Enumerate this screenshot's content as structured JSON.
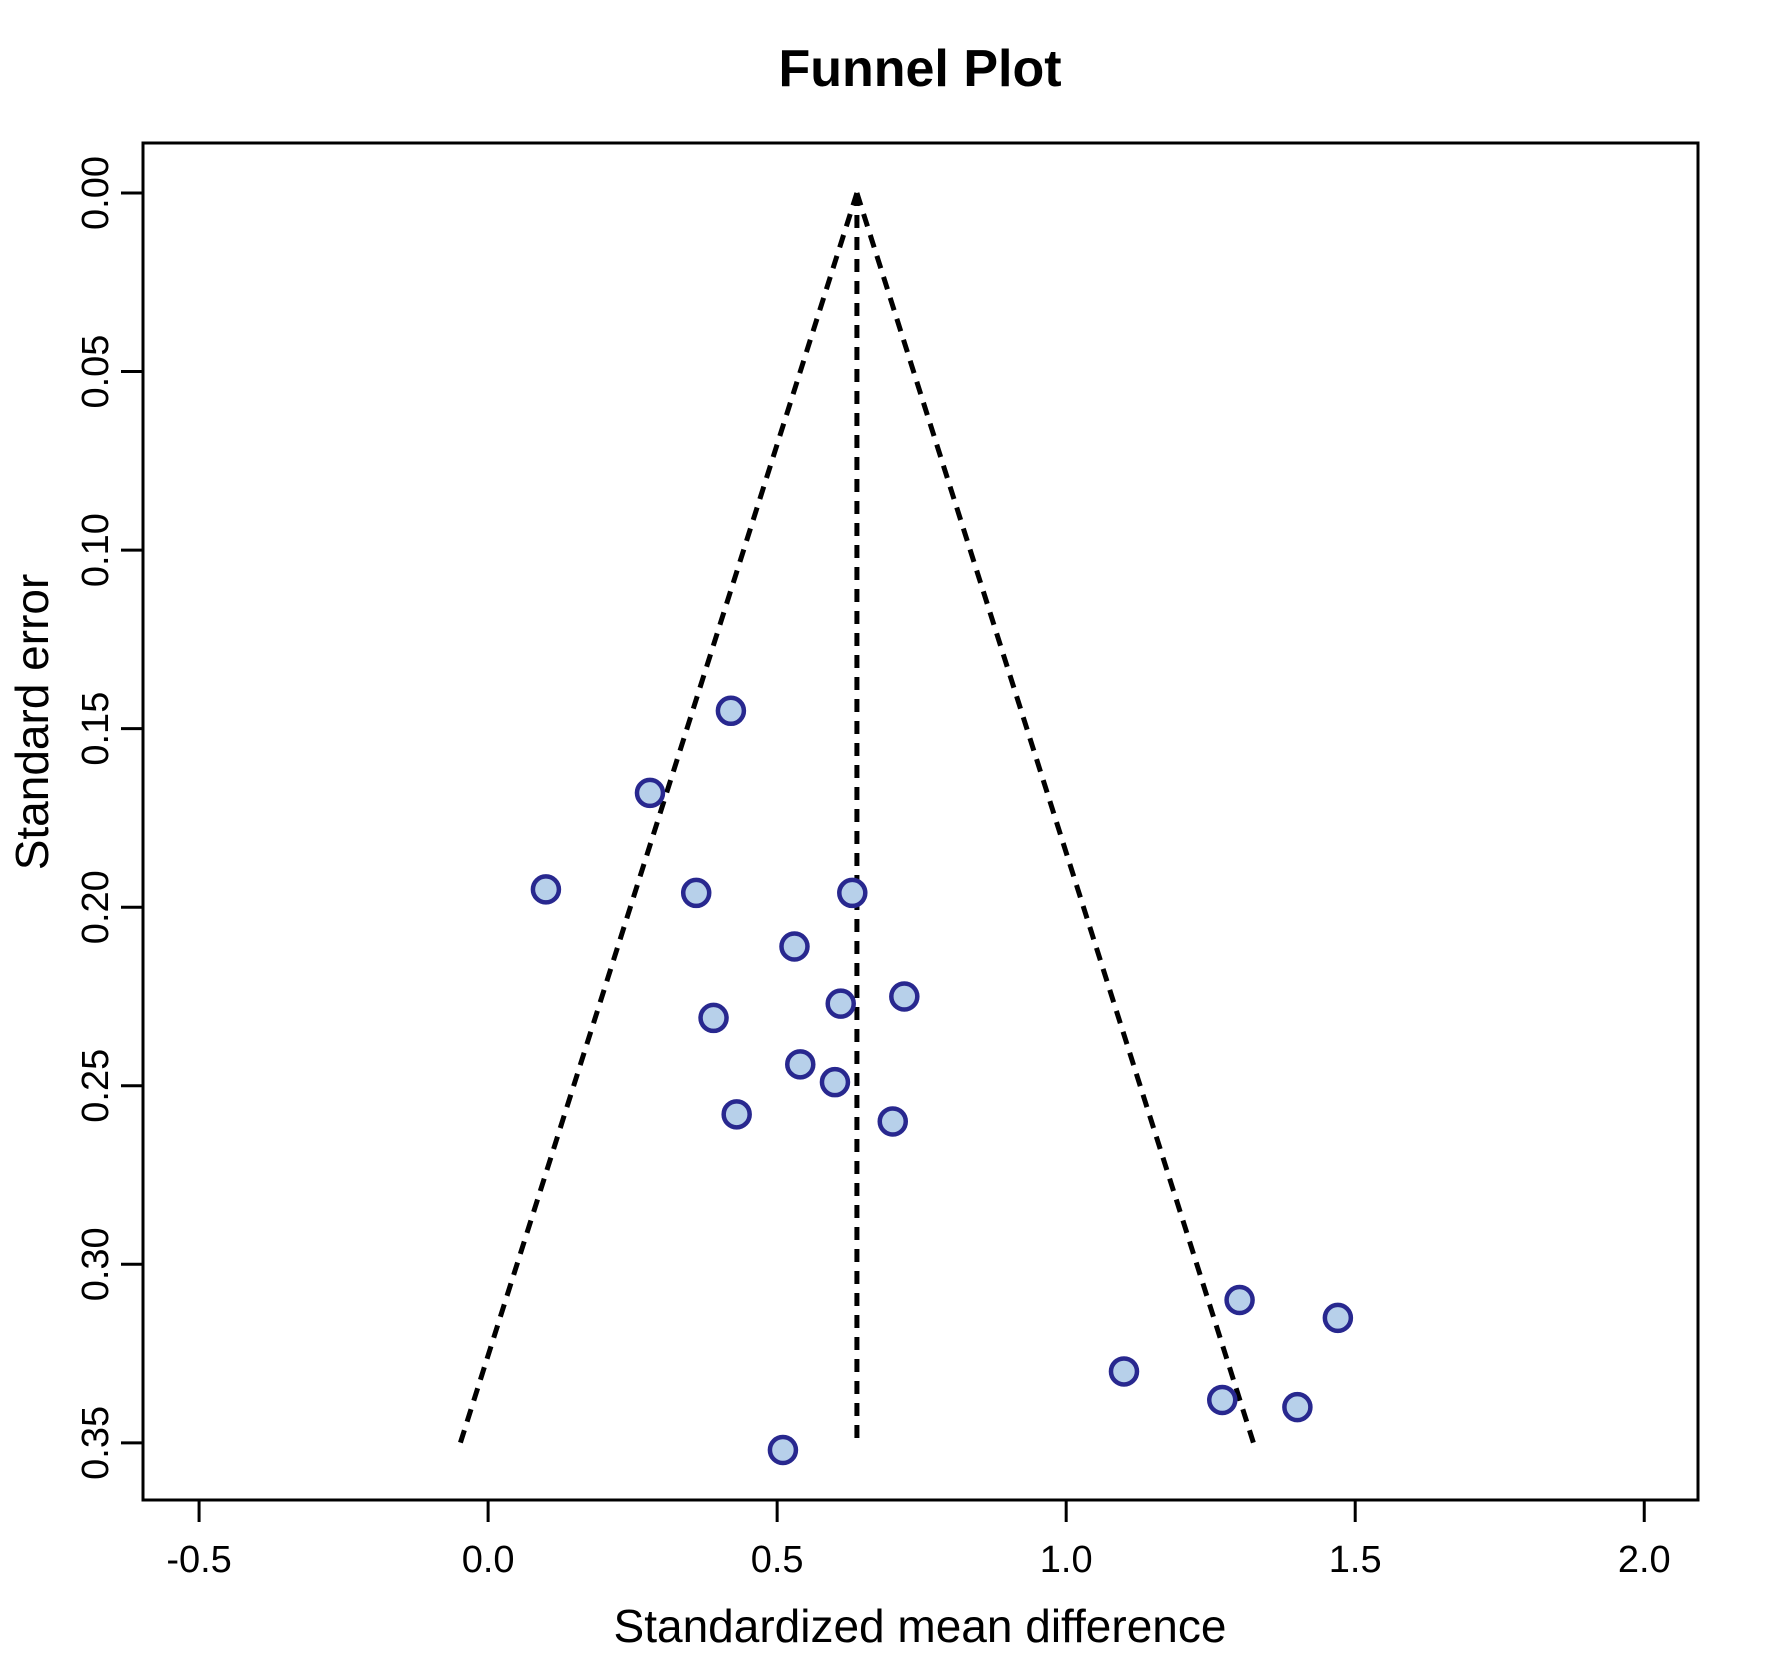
{
  "chart_data": {
    "type": "scatter",
    "title": "Funnel Plot",
    "xlabel": "Standardized mean difference",
    "ylabel": "Standard error",
    "grid": false,
    "legend": "none",
    "x_axis": {
      "min": -0.597,
      "max": 2.093,
      "ticks": [
        -0.5,
        0.0,
        0.5,
        1.0,
        1.5,
        2.0
      ],
      "tick_labels": [
        "-0.5",
        "0.0",
        "0.5",
        "1.0",
        "1.5",
        "2.0"
      ]
    },
    "y_axis": {
      "top": -0.014,
      "bottom": 0.366,
      "inverted": true,
      "ticks": [
        0.0,
        0.05,
        0.1,
        0.15,
        0.2,
        0.25,
        0.3,
        0.35
      ],
      "tick_labels": [
        "0.00",
        "0.05",
        "0.10",
        "0.15",
        "0.20",
        "0.25",
        "0.30",
        "0.35"
      ]
    },
    "points": [
      {
        "smd": 0.42,
        "se": 0.145
      },
      {
        "smd": 0.28,
        "se": 0.168
      },
      {
        "smd": 0.1,
        "se": 0.195
      },
      {
        "smd": 0.36,
        "se": 0.196
      },
      {
        "smd": 0.63,
        "se": 0.196
      },
      {
        "smd": 0.53,
        "se": 0.211
      },
      {
        "smd": 0.72,
        "se": 0.225
      },
      {
        "smd": 0.61,
        "se": 0.227
      },
      {
        "smd": 0.39,
        "se": 0.231
      },
      {
        "smd": 0.54,
        "se": 0.244
      },
      {
        "smd": 0.6,
        "se": 0.249
      },
      {
        "smd": 0.43,
        "se": 0.258
      },
      {
        "smd": 0.7,
        "se": 0.26
      },
      {
        "smd": 1.3,
        "se": 0.31
      },
      {
        "smd": 1.47,
        "se": 0.315
      },
      {
        "smd": 1.1,
        "se": 0.33
      },
      {
        "smd": 1.27,
        "se": 0.338
      },
      {
        "smd": 1.4,
        "se": 0.34
      },
      {
        "smd": 0.51,
        "se": 0.352
      }
    ],
    "funnel": {
      "center_smd": 0.638,
      "ci_multiplier": 1.96,
      "se_top": 0.0,
      "se_bottom": 0.352,
      "center_line_se_bottom": 0.35,
      "line_style": "dashed"
    },
    "colors": {
      "point_fill": "#b7d0ea",
      "point_stroke": "#28288f",
      "funnel_line": "#000000",
      "axis": "#000000",
      "text": "#000000",
      "background": "#ffffff"
    }
  }
}
